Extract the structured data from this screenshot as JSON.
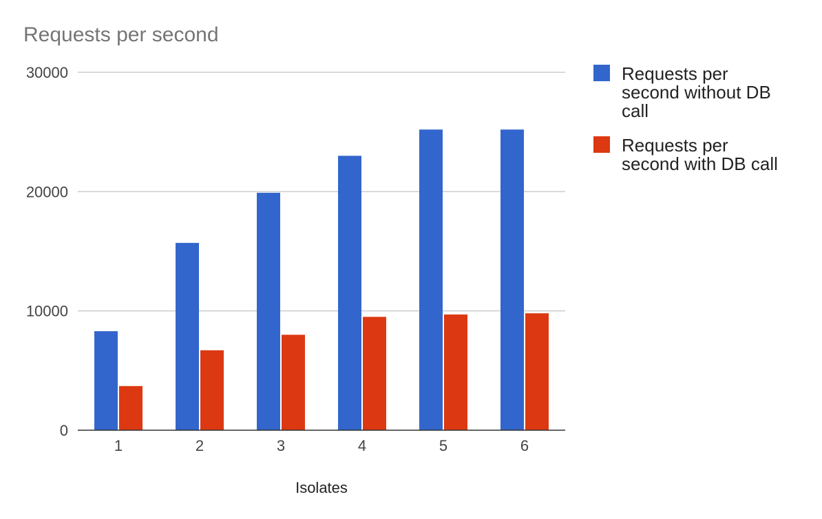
{
  "chart_data": {
    "type": "bar",
    "title": "Requests per second",
    "xlabel": "Isolates",
    "ylabel": "",
    "categories": [
      "1",
      "2",
      "3",
      "4",
      "5",
      "6"
    ],
    "series": [
      {
        "name": "Requests per second without DB call",
        "color": "#3366cc",
        "values": [
          8300,
          15700,
          19900,
          23000,
          25200,
          25200
        ]
      },
      {
        "name": "Requests per second with DB call",
        "color": "#dc3912",
        "values": [
          3700,
          6700,
          8000,
          9500,
          9700,
          9800
        ]
      }
    ],
    "ylim": [
      0,
      30000
    ],
    "yticks": [
      "0",
      "10000",
      "20000",
      "30000"
    ],
    "grid": true,
    "legend_position": "right"
  }
}
